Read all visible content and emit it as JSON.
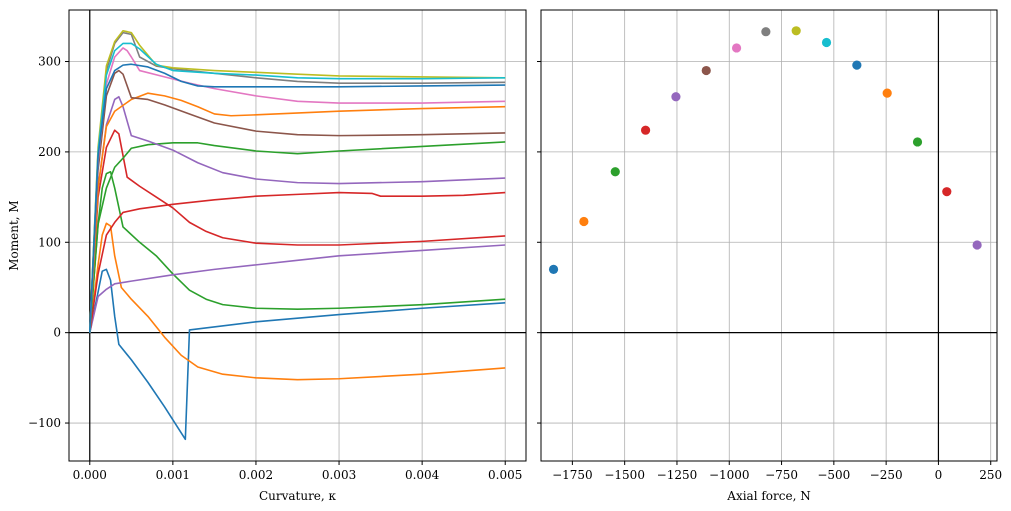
{
  "chart_data": [
    {
      "type": "line",
      "xlabel": "Curvature, κ",
      "ylabel": "Moment, M",
      "xlim": [
        -0.00025,
        0.00525
      ],
      "ylim": [
        -142,
        357
      ],
      "xticks": [
        0,
        0.001,
        0.002,
        0.003,
        0.004,
        0.005
      ],
      "xtick_labels": [
        "0.000",
        "0.001",
        "0.002",
        "0.003",
        "0.004",
        "0.005"
      ],
      "yticks": [
        -100,
        0,
        100,
        200,
        300
      ],
      "ytick_labels": [
        "−100",
        "0",
        "100",
        "200",
        "300"
      ],
      "grid": true,
      "series": [
        {
          "color": "#1f77b4",
          "points": [
            [
              0,
              0
            ],
            [
              0.0001,
              45
            ],
            [
              0.00015,
              68
            ],
            [
              0.0002,
              70
            ],
            [
              0.00025,
              58
            ],
            [
              0.0003,
              18
            ],
            [
              0.00035,
              -13
            ],
            [
              0.0005,
              -30
            ],
            [
              0.0007,
              -55
            ],
            [
              0.0009,
              -82
            ],
            [
              0.00115,
              -118
            ],
            [
              0.0012,
              3
            ],
            [
              0.002,
              12
            ],
            [
              0.003,
              20
            ],
            [
              0.004,
              27
            ],
            [
              0.005,
              33
            ]
          ]
        },
        {
          "color": "#ff7f0e",
          "points": [
            [
              0,
              0
            ],
            [
              0.0001,
              75
            ],
            [
              0.00015,
              108
            ],
            [
              0.0002,
              121
            ],
            [
              0.00025,
              118
            ],
            [
              0.0003,
              85
            ],
            [
              0.00038,
              50
            ],
            [
              0.0005,
              37
            ],
            [
              0.0007,
              18
            ],
            [
              0.0009,
              -5
            ],
            [
              0.0011,
              -25
            ],
            [
              0.0013,
              -38
            ],
            [
              0.0016,
              -46
            ],
            [
              0.002,
              -50
            ],
            [
              0.0025,
              -52
            ],
            [
              0.003,
              -51
            ],
            [
              0.004,
              -46
            ],
            [
              0.005,
              -39
            ]
          ]
        },
        {
          "color": "#2ca02c",
          "points": [
            [
              0,
              0
            ],
            [
              0.0001,
              120
            ],
            [
              0.00015,
              160
            ],
            [
              0.0002,
              176
            ],
            [
              0.00025,
              178
            ],
            [
              0.0003,
              160
            ],
            [
              0.0004,
              117
            ],
            [
              0.0006,
              100
            ],
            [
              0.0008,
              85
            ],
            [
              0.001,
              65
            ],
            [
              0.0012,
              47
            ],
            [
              0.0014,
              37
            ],
            [
              0.0016,
              31
            ],
            [
              0.002,
              27
            ],
            [
              0.0025,
              26
            ],
            [
              0.003,
              27
            ],
            [
              0.004,
              31
            ],
            [
              0.005,
              37
            ]
          ]
        },
        {
          "color": "#d62728",
          "points": [
            [
              0,
              0
            ],
            [
              0.0001,
              150
            ],
            [
              0.0002,
              205
            ],
            [
              0.0003,
              224
            ],
            [
              0.00035,
              220
            ],
            [
              0.00045,
              172
            ],
            [
              0.0006,
              162
            ],
            [
              0.0008,
              150
            ],
            [
              0.001,
              138
            ],
            [
              0.0012,
              122
            ],
            [
              0.0014,
              112
            ],
            [
              0.0016,
              105
            ],
            [
              0.002,
              99
            ],
            [
              0.0025,
              97
            ],
            [
              0.003,
              97
            ],
            [
              0.004,
              101
            ],
            [
              0.005,
              107
            ]
          ]
        },
        {
          "color": "#9467bd",
          "points": [
            [
              0,
              0
            ],
            [
              0.0001,
              40
            ],
            [
              0.0002,
              48
            ],
            [
              0.0003,
              54
            ],
            [
              0.0005,
              57
            ],
            [
              0.001,
              64
            ],
            [
              0.0015,
              70
            ],
            [
              0.002,
              75
            ],
            [
              0.0025,
              80
            ],
            [
              0.003,
              85
            ],
            [
              0.004,
              91
            ],
            [
              0.005,
              97
            ]
          ]
        },
        {
          "color": "#d62728",
          "points": [
            [
              0,
              0
            ],
            [
              0.0001,
              65
            ],
            [
              0.0002,
              108
            ],
            [
              0.0003,
              122
            ],
            [
              0.0004,
              133
            ],
            [
              0.0006,
              137
            ],
            [
              0.001,
              142
            ],
            [
              0.0015,
              147
            ],
            [
              0.002,
              151
            ],
            [
              0.0025,
              153
            ],
            [
              0.003,
              155
            ],
            [
              0.0034,
              154
            ],
            [
              0.0035,
              151
            ],
            [
              0.004,
              151
            ],
            [
              0.0045,
              152
            ],
            [
              0.005,
              155
            ]
          ]
        },
        {
          "color": "#2ca02c",
          "points": [
            [
              0,
              0
            ],
            [
              0.0001,
              120
            ],
            [
              0.0002,
              160
            ],
            [
              0.0003,
              183
            ],
            [
              0.0004,
              193
            ],
            [
              0.0005,
              204
            ],
            [
              0.0007,
              208
            ],
            [
              0.001,
              210
            ],
            [
              0.0013,
              210
            ],
            [
              0.0015,
              207
            ],
            [
              0.002,
              201
            ],
            [
              0.0025,
              198
            ],
            [
              0.003,
              201
            ],
            [
              0.004,
              206
            ],
            [
              0.005,
              211
            ]
          ]
        },
        {
          "color": "#9467bd",
          "points": [
            [
              0,
              0
            ],
            [
              0.0001,
              160
            ],
            [
              0.0002,
              230
            ],
            [
              0.0003,
              258
            ],
            [
              0.00035,
              261
            ],
            [
              0.0004,
              250
            ],
            [
              0.0005,
              218
            ],
            [
              0.0007,
              212
            ],
            [
              0.001,
              202
            ],
            [
              0.0013,
              188
            ],
            [
              0.0016,
              177
            ],
            [
              0.002,
              170
            ],
            [
              0.0025,
              166
            ],
            [
              0.003,
              165
            ],
            [
              0.004,
              167
            ],
            [
              0.005,
              171
            ]
          ]
        },
        {
          "color": "#ff7f0e",
          "points": [
            [
              0,
              0
            ],
            [
              0.0001,
              160
            ],
            [
              0.0002,
              228
            ],
            [
              0.0003,
              245
            ],
            [
              0.0005,
              258
            ],
            [
              0.0007,
              265
            ],
            [
              0.0009,
              262
            ],
            [
              0.0011,
              257
            ],
            [
              0.0013,
              250
            ],
            [
              0.0015,
              242
            ],
            [
              0.0017,
              240
            ],
            [
              0.002,
              241
            ],
            [
              0.003,
              245
            ],
            [
              0.004,
              248
            ],
            [
              0.005,
              250
            ]
          ]
        },
        {
          "color": "#8c564b",
          "points": [
            [
              0,
              0
            ],
            [
              0.0001,
              180
            ],
            [
              0.0002,
              262
            ],
            [
              0.0003,
              287
            ],
            [
              0.00035,
              290
            ],
            [
              0.0004,
              286
            ],
            [
              0.0005,
              260
            ],
            [
              0.0007,
              258
            ],
            [
              0.0009,
              252
            ],
            [
              0.0012,
              242
            ],
            [
              0.0015,
              232
            ],
            [
              0.002,
              223
            ],
            [
              0.0025,
              219
            ],
            [
              0.003,
              218
            ],
            [
              0.004,
              219
            ],
            [
              0.005,
              221
            ]
          ]
        },
        {
          "color": "#e377c2",
          "points": [
            [
              0,
              0
            ],
            [
              0.0001,
              190
            ],
            [
              0.0002,
              275
            ],
            [
              0.0003,
              305
            ],
            [
              0.0004,
              315
            ],
            [
              0.00045,
              312
            ],
            [
              0.0005,
              305
            ],
            [
              0.0006,
              290
            ],
            [
              0.0009,
              283
            ],
            [
              0.0012,
              276
            ],
            [
              0.0015,
              270
            ],
            [
              0.002,
              262
            ],
            [
              0.0025,
              256
            ],
            [
              0.003,
              254
            ],
            [
              0.004,
              254
            ],
            [
              0.005,
              256
            ]
          ]
        },
        {
          "color": "#7f7f7f",
          "points": [
            [
              0,
              0
            ],
            [
              0.0001,
              200
            ],
            [
              0.0002,
              290
            ],
            [
              0.0003,
              320
            ],
            [
              0.0004,
              332
            ],
            [
              0.0005,
              330
            ],
            [
              0.0006,
              305
            ],
            [
              0.0008,
              295
            ],
            [
              0.001,
              292
            ],
            [
              0.0015,
              287
            ],
            [
              0.002,
              282
            ],
            [
              0.0025,
              278
            ],
            [
              0.003,
              276
            ],
            [
              0.004,
              276
            ],
            [
              0.005,
              277
            ]
          ]
        },
        {
          "color": "#bcbd22",
          "points": [
            [
              0,
              0
            ],
            [
              0.0001,
              205
            ],
            [
              0.0002,
              295
            ],
            [
              0.0003,
              322
            ],
            [
              0.0004,
              334
            ],
            [
              0.0005,
              332
            ],
            [
              0.0006,
              318
            ],
            [
              0.0008,
              296
            ],
            [
              0.001,
              293
            ],
            [
              0.0015,
              290
            ],
            [
              0.002,
              288
            ],
            [
              0.0025,
              286
            ],
            [
              0.003,
              284
            ],
            [
              0.005,
              282
            ]
          ]
        },
        {
          "color": "#17becf",
          "points": [
            [
              0,
              0
            ],
            [
              0.0001,
              200
            ],
            [
              0.0002,
              285
            ],
            [
              0.0003,
              312
            ],
            [
              0.0004,
              320
            ],
            [
              0.0005,
              320
            ],
            [
              0.0006,
              314
            ],
            [
              0.0008,
              297
            ],
            [
              0.001,
              290
            ],
            [
              0.0015,
              287
            ],
            [
              0.002,
              285
            ],
            [
              0.0025,
              282
            ],
            [
              0.003,
              281
            ],
            [
              0.004,
              281
            ],
            [
              0.005,
              282
            ]
          ]
        },
        {
          "color": "#1f77b4",
          "points": [
            [
              0,
              0
            ],
            [
              0.0001,
              195
            ],
            [
              0.0002,
              270
            ],
            [
              0.0003,
              290
            ],
            [
              0.0004,
              296
            ],
            [
              0.0005,
              297
            ],
            [
              0.0007,
              294
            ],
            [
              0.0009,
              287
            ],
            [
              0.0011,
              278
            ],
            [
              0.0013,
              273
            ],
            [
              0.0015,
              272
            ],
            [
              0.002,
              272
            ],
            [
              0.003,
              272
            ],
            [
              0.004,
              273
            ],
            [
              0.005,
              274
            ]
          ]
        }
      ]
    },
    {
      "type": "scatter",
      "xlabel": "Axial force, N",
      "ylabel": "",
      "xlim": [
        -1900,
        280
      ],
      "ylim": [
        -142,
        357
      ],
      "xticks": [
        -1750,
        -1500,
        -1250,
        -1000,
        -750,
        -500,
        -250,
        0,
        250
      ],
      "xtick_labels": [
        "−1750",
        "−1500",
        "−1250",
        "−1000",
        "−750",
        "−500",
        "−250",
        "0",
        "250"
      ],
      "grid": true,
      "points": [
        {
          "x": -1840,
          "y": 70,
          "color": "#1f77b4"
        },
        {
          "x": -1695,
          "y": 123,
          "color": "#ff7f0e"
        },
        {
          "x": -1545,
          "y": 178,
          "color": "#2ca02c"
        },
        {
          "x": -1400,
          "y": 224,
          "color": "#d62728"
        },
        {
          "x": -1255,
          "y": 261,
          "color": "#9467bd"
        },
        {
          "x": -1110,
          "y": 290,
          "color": "#8c564b"
        },
        {
          "x": -965,
          "y": 315,
          "color": "#e377c2"
        },
        {
          "x": -825,
          "y": 333,
          "color": "#7f7f7f"
        },
        {
          "x": -680,
          "y": 334,
          "color": "#bcbd22"
        },
        {
          "x": -535,
          "y": 321,
          "color": "#17becf"
        },
        {
          "x": -390,
          "y": 296,
          "color": "#1f77b4"
        },
        {
          "x": -245,
          "y": 265,
          "color": "#ff7f0e"
        },
        {
          "x": -100,
          "y": 211,
          "color": "#2ca02c"
        },
        {
          "x": 40,
          "y": 156,
          "color": "#d62728"
        },
        {
          "x": 185,
          "y": 97,
          "color": "#9467bd"
        }
      ]
    }
  ]
}
